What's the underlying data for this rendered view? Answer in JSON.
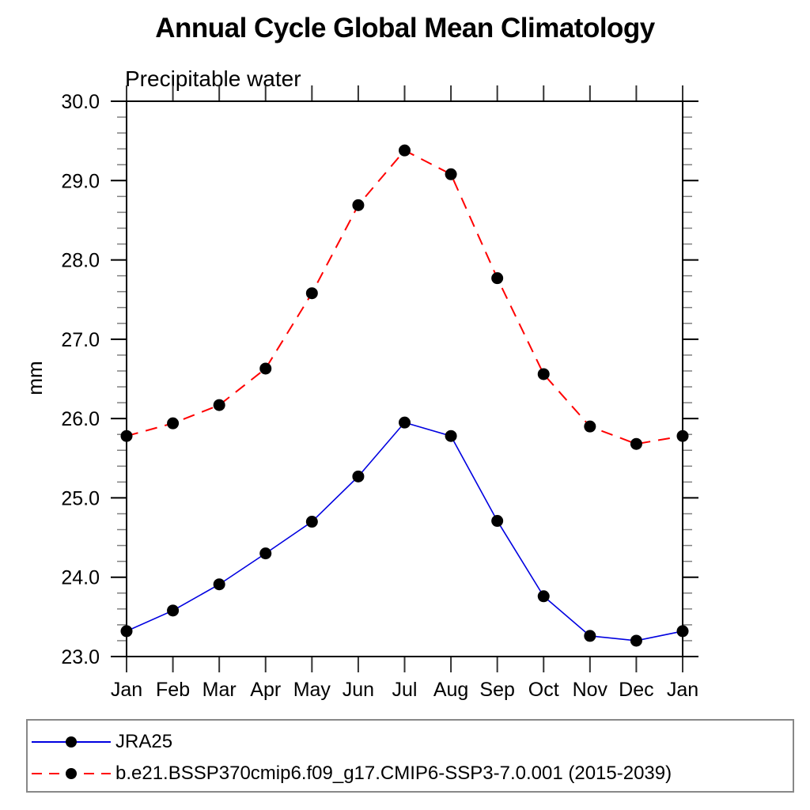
{
  "header": {
    "title": "Annual Cycle Global Mean Climatology",
    "subtitle": "Precipitable water"
  },
  "chart_data": {
    "type": "line",
    "title": "Annual Cycle Global Mean Climatology",
    "subtitle": "Precipitable water",
    "xlabel": "",
    "ylabel": "mm",
    "x_categories": [
      "Jan",
      "Feb",
      "Mar",
      "Apr",
      "May",
      "Jun",
      "Jul",
      "Aug",
      "Sep",
      "Oct",
      "Nov",
      "Dec",
      "Jan"
    ],
    "ylim": [
      23.0,
      30.0
    ],
    "y_major_step": 1.0,
    "y_minor_step": 0.2,
    "y_tick_labels": [
      "30.0",
      "29.0",
      "28.0",
      "27.0",
      "26.0",
      "25.0",
      "24.0",
      "23.0"
    ],
    "grid": false,
    "legend_position": "bottom-outside",
    "frame_color": "#000000",
    "minor_tick_color": "#808080",
    "month_tick_color": "#333333",
    "series": [
      {
        "name": "JRA25",
        "color": "#0000e0",
        "line_style": "solid",
        "marker": "filled-circle",
        "marker_color": "#000000",
        "values": [
          23.32,
          23.58,
          23.91,
          24.3,
          24.7,
          25.27,
          25.95,
          25.78,
          24.71,
          23.76,
          23.26,
          23.2,
          23.32
        ]
      },
      {
        "name": "b.e21.BSSP370cmip6.f09_g17.CMIP6-SSP3-7.0.001 (2015-2039)",
        "color": "#ff0000",
        "line_style": "dashed",
        "marker": "filled-circle",
        "marker_color": "#000000",
        "values": [
          25.78,
          25.94,
          26.17,
          26.63,
          27.58,
          28.69,
          29.38,
          29.08,
          27.77,
          26.56,
          25.9,
          25.68,
          25.78
        ]
      }
    ]
  }
}
